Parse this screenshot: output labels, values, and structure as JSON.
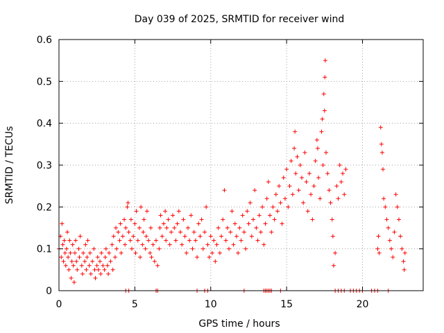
{
  "chart_data": {
    "type": "scatter",
    "title": "Day 039 of 2025, SRMTID for receiver wind",
    "xlabel": "GPS time / hours",
    "ylabel": "SRMTID / TECUs",
    "xlim": [
      0,
      24
    ],
    "ylim": [
      0,
      0.6
    ],
    "xticks": [
      0,
      5,
      10,
      15,
      20
    ],
    "xtick_labels": [
      "0",
      "5",
      "10",
      "15",
      "20"
    ],
    "yticks": [
      0,
      0.1,
      0.2,
      0.3,
      0.4,
      0.5,
      0.6
    ],
    "ytick_labels": [
      "0",
      "0.1",
      "0.2",
      "0.3",
      "0.4",
      "0.5",
      "0.6"
    ],
    "grid": true,
    "marker": "+",
    "color": "#ff0000",
    "series": [
      {
        "name": "SRMTID",
        "points": [
          [
            0.0,
            0.1
          ],
          [
            0.1,
            0.13
          ],
          [
            0.15,
            0.08
          ],
          [
            0.2,
            0.16
          ],
          [
            0.25,
            0.11
          ],
          [
            0.3,
            0.07
          ],
          [
            0.35,
            0.12
          ],
          [
            0.4,
            0.09
          ],
          [
            0.45,
            0.06
          ],
          [
            0.5,
            0.1
          ],
          [
            0.55,
            0.14
          ],
          [
            0.6,
            0.08
          ],
          [
            0.65,
            0.05
          ],
          [
            0.7,
            0.12
          ],
          [
            0.75,
            0.09
          ],
          [
            0.8,
            0.03
          ],
          [
            0.85,
            0.07
          ],
          [
            0.9,
            0.11
          ],
          [
            0.95,
            0.06
          ],
          [
            1.0,
            0.02
          ],
          [
            1.05,
            0.09
          ],
          [
            1.1,
            0.12
          ],
          [
            1.15,
            0.07
          ],
          [
            1.2,
            0.05
          ],
          [
            1.3,
            0.1
          ],
          [
            1.35,
            0.08
          ],
          [
            1.4,
            0.13
          ],
          [
            1.5,
            0.06
          ],
          [
            1.55,
            0.04
          ],
          [
            1.6,
            0.09
          ],
          [
            1.7,
            0.07
          ],
          [
            1.75,
            0.11
          ],
          [
            1.8,
            0.05
          ],
          [
            1.85,
            0.08
          ],
          [
            1.9,
            0.12
          ],
          [
            2.0,
            0.06
          ],
          [
            2.05,
            0.09
          ],
          [
            2.1,
            0.04
          ],
          [
            2.2,
            0.07
          ],
          [
            2.3,
            0.1
          ],
          [
            2.35,
            0.05
          ],
          [
            2.4,
            0.03
          ],
          [
            2.5,
            0.06
          ],
          [
            2.55,
            0.08
          ],
          [
            2.6,
            0.05
          ],
          [
            2.7,
            0.07
          ],
          [
            2.75,
            0.04
          ],
          [
            2.8,
            0.09
          ],
          [
            2.9,
            0.06
          ],
          [
            3.0,
            0.05
          ],
          [
            3.05,
            0.08
          ],
          [
            3.1,
            0.1
          ],
          [
            3.2,
            0.06
          ],
          [
            3.25,
            0.04
          ],
          [
            3.3,
            0.09
          ],
          [
            3.4,
            0.07
          ],
          [
            3.5,
            0.11
          ],
          [
            3.55,
            0.05
          ],
          [
            3.6,
            0.13
          ],
          [
            3.7,
            0.08
          ],
          [
            3.75,
            0.15
          ],
          [
            3.8,
            0.1
          ],
          [
            3.9,
            0.14
          ],
          [
            4.0,
            0.12
          ],
          [
            4.05,
            0.16
          ],
          [
            4.1,
            0.09
          ],
          [
            4.2,
            0.13
          ],
          [
            4.3,
            0.17
          ],
          [
            4.35,
            0.11
          ],
          [
            4.4,
            0.15
          ],
          [
            4.5,
            0.2
          ],
          [
            4.55,
            0.21
          ],
          [
            4.6,
            0.14
          ],
          [
            4.7,
            0.12
          ],
          [
            4.75,
            0.17
          ],
          [
            4.8,
            0.1
          ],
          [
            4.9,
            0.13
          ],
          [
            5.0,
            0.16
          ],
          [
            5.05,
            0.09
          ],
          [
            5.1,
            0.19
          ],
          [
            5.2,
            0.12
          ],
          [
            5.3,
            0.15
          ],
          [
            5.35,
            0.08
          ],
          [
            5.4,
            0.2
          ],
          [
            5.5,
            0.11
          ],
          [
            5.55,
            0.14
          ],
          [
            5.6,
            0.17
          ],
          [
            5.7,
            0.1
          ],
          [
            5.75,
            0.13
          ],
          [
            5.8,
            0.19
          ],
          [
            5.9,
            0.12
          ],
          [
            6.0,
            0.09
          ],
          [
            6.05,
            0.15
          ],
          [
            6.1,
            0.08
          ],
          [
            6.2,
            0.11
          ],
          [
            6.3,
            0.07
          ],
          [
            6.4,
            0.12
          ],
          [
            6.5,
            0.06
          ],
          [
            6.6,
            0.1
          ],
          [
            6.65,
            0.15
          ],
          [
            6.7,
            0.18
          ],
          [
            6.8,
            0.13
          ],
          [
            6.9,
            0.16
          ],
          [
            7.0,
            0.19
          ],
          [
            7.05,
            0.12
          ],
          [
            7.1,
            0.15
          ],
          [
            7.2,
            0.17
          ],
          [
            7.3,
            0.11
          ],
          [
            7.4,
            0.14
          ],
          [
            7.5,
            0.18
          ],
          [
            7.6,
            0.15
          ],
          [
            7.7,
            0.12
          ],
          [
            7.8,
            0.16
          ],
          [
            7.9,
            0.19
          ],
          [
            8.0,
            0.14
          ],
          [
            8.1,
            0.11
          ],
          [
            8.2,
            0.17
          ],
          [
            8.3,
            0.13
          ],
          [
            8.4,
            0.09
          ],
          [
            8.5,
            0.15
          ],
          [
            8.6,
            0.12
          ],
          [
            8.7,
            0.18
          ],
          [
            8.8,
            0.1
          ],
          [
            8.9,
            0.14
          ],
          [
            9.0,
            0.12
          ],
          [
            9.1,
            0.08
          ],
          [
            9.2,
            0.16
          ],
          [
            9.3,
            0.13
          ],
          [
            9.4,
            0.17
          ],
          [
            9.5,
            0.1
          ],
          [
            9.6,
            0.14
          ],
          [
            9.7,
            0.2
          ],
          [
            9.8,
            0.11
          ],
          [
            9.9,
            0.08
          ],
          [
            10.0,
            0.13
          ],
          [
            10.1,
            0.09
          ],
          [
            10.2,
            0.12
          ],
          [
            10.3,
            0.07
          ],
          [
            10.4,
            0.11
          ],
          [
            10.5,
            0.15
          ],
          [
            10.6,
            0.09
          ],
          [
            10.7,
            0.13
          ],
          [
            10.8,
            0.17
          ],
          [
            10.9,
            0.24
          ],
          [
            11.0,
            0.12
          ],
          [
            11.1,
            0.15
          ],
          [
            11.2,
            0.1
          ],
          [
            11.3,
            0.14
          ],
          [
            11.4,
            0.19
          ],
          [
            11.5,
            0.11
          ],
          [
            11.6,
            0.16
          ],
          [
            11.7,
            0.13
          ],
          [
            11.8,
            0.09
          ],
          [
            11.9,
            0.15
          ],
          [
            12.0,
            0.12
          ],
          [
            12.1,
            0.18
          ],
          [
            12.2,
            0.14
          ],
          [
            12.3,
            0.1
          ],
          [
            12.4,
            0.19
          ],
          [
            12.5,
            0.16
          ],
          [
            12.6,
            0.21
          ],
          [
            12.7,
            0.13
          ],
          [
            12.8,
            0.17
          ],
          [
            12.9,
            0.24
          ],
          [
            13.0,
            0.15
          ],
          [
            13.1,
            0.12
          ],
          [
            13.2,
            0.18
          ],
          [
            13.3,
            0.14
          ],
          [
            13.4,
            0.2
          ],
          [
            13.5,
            0.11
          ],
          [
            13.6,
            0.16
          ],
          [
            13.7,
            0.22
          ],
          [
            13.8,
            0.26
          ],
          [
            13.9,
            0.18
          ],
          [
            14.0,
            0.14
          ],
          [
            14.1,
            0.2
          ],
          [
            14.2,
            0.17
          ],
          [
            14.3,
            0.23
          ],
          [
            14.4,
            0.19
          ],
          [
            14.5,
            0.25
          ],
          [
            14.6,
            0.21
          ],
          [
            14.7,
            0.16
          ],
          [
            14.8,
            0.27
          ],
          [
            14.9,
            0.22
          ],
          [
            15.0,
            0.29
          ],
          [
            15.1,
            0.2
          ],
          [
            15.2,
            0.25
          ],
          [
            15.3,
            0.31
          ],
          [
            15.4,
            0.23
          ],
          [
            15.5,
            0.34
          ],
          [
            15.55,
            0.38
          ],
          [
            15.6,
            0.28
          ],
          [
            15.7,
            0.32
          ],
          [
            15.8,
            0.24
          ],
          [
            15.9,
            0.3
          ],
          [
            16.0,
            0.27
          ],
          [
            16.1,
            0.21
          ],
          [
            16.2,
            0.33
          ],
          [
            16.3,
            0.26
          ],
          [
            16.4,
            0.19
          ],
          [
            16.5,
            0.28
          ],
          [
            16.6,
            0.23
          ],
          [
            16.7,
            0.17
          ],
          [
            16.8,
            0.25
          ],
          [
            16.9,
            0.31
          ],
          [
            17.0,
            0.36
          ],
          [
            17.05,
            0.34
          ],
          [
            17.1,
            0.27
          ],
          [
            17.2,
            0.22
          ],
          [
            17.3,
            0.38
          ],
          [
            17.35,
            0.41
          ],
          [
            17.4,
            0.3
          ],
          [
            17.45,
            0.47
          ],
          [
            17.5,
            0.43
          ],
          [
            17.52,
            0.51
          ],
          [
            17.55,
            0.55
          ],
          [
            17.6,
            0.33
          ],
          [
            17.7,
            0.28
          ],
          [
            17.8,
            0.24
          ],
          [
            17.9,
            0.21
          ],
          [
            18.0,
            0.17
          ],
          [
            18.05,
            0.13
          ],
          [
            18.1,
            0.06
          ],
          [
            18.2,
            0.09
          ],
          [
            18.3,
            0.25
          ],
          [
            18.4,
            0.22
          ],
          [
            18.5,
            0.3
          ],
          [
            18.6,
            0.26
          ],
          [
            18.7,
            0.28
          ],
          [
            18.8,
            0.23
          ],
          [
            18.9,
            0.29
          ],
          [
            21.0,
            0.1
          ],
          [
            21.05,
            0.13
          ],
          [
            21.1,
            0.09
          ],
          [
            21.2,
            0.39
          ],
          [
            21.25,
            0.35
          ],
          [
            21.3,
            0.33
          ],
          [
            21.35,
            0.29
          ],
          [
            21.4,
            0.22
          ],
          [
            21.5,
            0.2
          ],
          [
            21.6,
            0.17
          ],
          [
            21.7,
            0.15
          ],
          [
            21.8,
            0.12
          ],
          [
            21.9,
            0.1
          ],
          [
            22.0,
            0.08
          ],
          [
            22.1,
            0.14
          ],
          [
            22.2,
            0.23
          ],
          [
            22.3,
            0.2
          ],
          [
            22.4,
            0.17
          ],
          [
            22.5,
            0.13
          ],
          [
            22.6,
            0.1
          ],
          [
            22.7,
            0.07
          ],
          [
            22.75,
            0.05
          ],
          [
            22.8,
            0.09
          ]
        ],
        "zero_points": [
          4.4,
          4.6,
          6.4,
          6.5,
          9.1,
          9.6,
          9.8,
          12.2,
          13.5,
          13.6,
          13.7,
          13.8,
          13.9,
          14.0,
          14.6,
          18.2,
          18.4,
          18.6,
          18.8,
          19.2,
          19.4,
          19.6,
          19.8,
          20.0,
          20.6,
          20.8,
          21.0,
          21.7
        ]
      }
    ]
  }
}
